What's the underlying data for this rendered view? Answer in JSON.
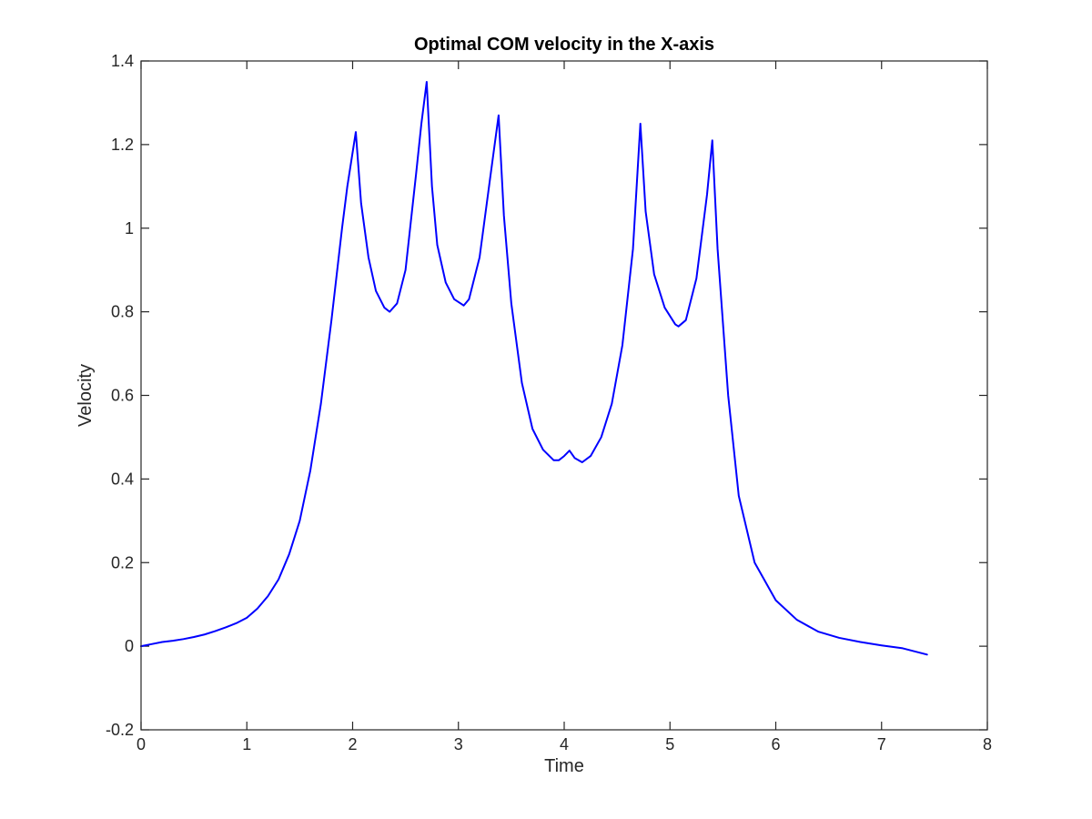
{
  "chart_data": {
    "type": "line",
    "title": "Optimal COM velocity in the X-axis",
    "xlabel": "Time",
    "ylabel": "Velocity",
    "xlim": [
      0,
      8
    ],
    "ylim": [
      -0.2,
      1.4
    ],
    "xticks": [
      0,
      1,
      2,
      3,
      4,
      5,
      6,
      7,
      8
    ],
    "yticks": [
      -0.2,
      0,
      0.2,
      0.4,
      0.6,
      0.8,
      1,
      1.2,
      1.4
    ],
    "xtick_labels": [
      "0",
      "1",
      "2",
      "3",
      "4",
      "5",
      "6",
      "7",
      "8"
    ],
    "ytick_labels": [
      "-0.2",
      "0",
      "0.2",
      "0.4",
      "0.6",
      "0.8",
      "1",
      "1.2",
      "1.4"
    ],
    "grid": false,
    "box": true,
    "series": [
      {
        "color": "#0000ff",
        "x": [
          0,
          0.1,
          0.2,
          0.3,
          0.4,
          0.5,
          0.6,
          0.7,
          0.8,
          0.9,
          1.0,
          1.1,
          1.2,
          1.3,
          1.4,
          1.5,
          1.6,
          1.7,
          1.8,
          1.9,
          1.95,
          2.03,
          2.08,
          2.15,
          2.22,
          2.3,
          2.35,
          2.42,
          2.5,
          2.6,
          2.65,
          2.7,
          2.75,
          2.8,
          2.88,
          2.96,
          3.05,
          3.1,
          3.2,
          3.3,
          3.38,
          3.43,
          3.5,
          3.6,
          3.7,
          3.8,
          3.9,
          3.95,
          4.0,
          4.05,
          4.1,
          4.17,
          4.25,
          4.35,
          4.45,
          4.55,
          4.65,
          4.72,
          4.77,
          4.85,
          4.95,
          5.05,
          5.08,
          5.15,
          5.25,
          5.35,
          5.4,
          5.45,
          5.55,
          5.65,
          5.8,
          6.0,
          6.2,
          6.4,
          6.6,
          6.8,
          7.0,
          7.2,
          7.43
        ],
        "y": [
          0,
          0.005,
          0.01,
          0.013,
          0.017,
          0.022,
          0.028,
          0.036,
          0.045,
          0.055,
          0.068,
          0.09,
          0.12,
          0.16,
          0.22,
          0.3,
          0.42,
          0.58,
          0.78,
          1.0,
          1.1,
          1.23,
          1.06,
          0.93,
          0.85,
          0.81,
          0.8,
          0.82,
          0.9,
          1.13,
          1.25,
          1.35,
          1.1,
          0.96,
          0.87,
          0.83,
          0.815,
          0.83,
          0.93,
          1.12,
          1.27,
          1.03,
          0.82,
          0.63,
          0.52,
          0.47,
          0.445,
          0.445,
          0.455,
          0.468,
          0.45,
          0.44,
          0.455,
          0.5,
          0.58,
          0.72,
          0.95,
          1.25,
          1.04,
          0.89,
          0.81,
          0.77,
          0.765,
          0.78,
          0.88,
          1.08,
          1.21,
          0.95,
          0.6,
          0.36,
          0.2,
          0.11,
          0.063,
          0.035,
          0.02,
          0.01,
          0.002,
          -0.005,
          -0.02
        ]
      }
    ]
  }
}
